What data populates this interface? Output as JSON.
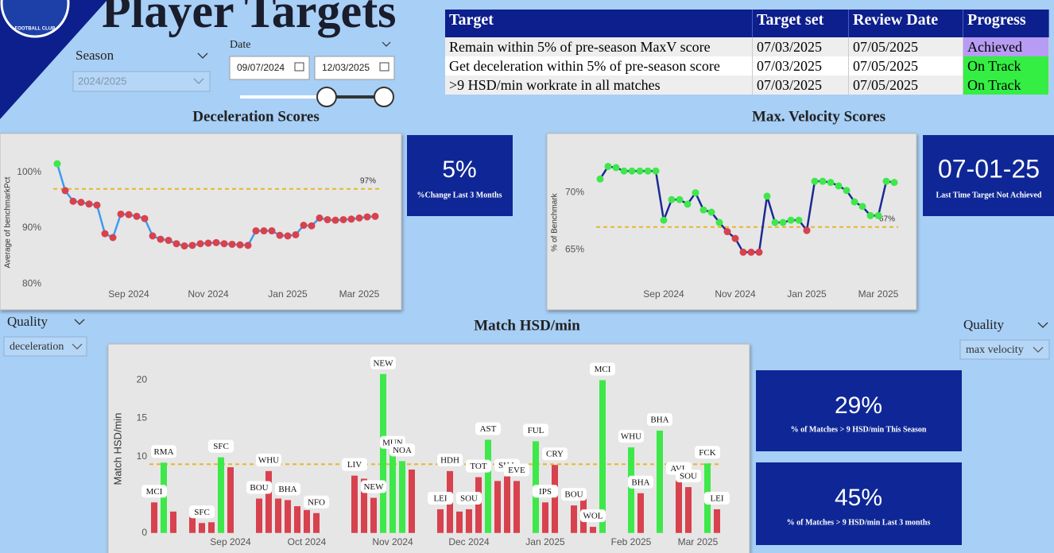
{
  "header": {
    "title": "Player Targets",
    "logo_text": "FOOTBALL CLUB"
  },
  "filters": {
    "season_label": "Season",
    "season_value": "2024/2025",
    "date_label": "Date",
    "date_start": "09/07/2024",
    "date_end": "12/03/2025",
    "quality_left_label": "Quality",
    "quality_left_value": "deceleration",
    "quality_right_label": "Quality",
    "quality_right_value": "max velocity"
  },
  "table": {
    "headers": [
      "Target",
      "Target set",
      "Review Date",
      "Progress"
    ],
    "rows": [
      [
        "Remain within 5% of pre-season MaxV score",
        "07/03/2025",
        "07/05/2025",
        "Achieved"
      ],
      [
        "Get deceleration within 5% of pre-season score",
        "07/03/2025",
        "07/05/2025",
        "On Track"
      ],
      [
        ">9 HSD/min workrate in all matches",
        "07/03/2025",
        "07/05/2025",
        "On Track"
      ]
    ],
    "progress_colors": [
      "#b79cf3",
      "#34ee44",
      "#34ee44"
    ]
  },
  "cards": [
    {
      "value": "5%",
      "caption": "%Change Last 3 Months"
    },
    {
      "value": "07-01-25",
      "caption": "Last Time Target Not Achieved"
    },
    {
      "value": "29%",
      "caption": "% of Matches > 9 HSD/min This Season"
    },
    {
      "value": "45%",
      "caption": "% of Matches > 9 HSD/min Last 3 months"
    }
  ],
  "chart_data": [
    {
      "type": "line",
      "title": "Deceleration Scores",
      "ylabel": "Average of benchmarkPct",
      "categories": [
        null,
        null,
        null,
        null,
        null,
        null,
        null,
        null,
        null,
        "Sep 2024",
        null,
        null,
        null,
        null,
        null,
        null,
        null,
        null,
        null,
        "Nov 2024",
        null,
        null,
        null,
        null,
        null,
        null,
        null,
        null,
        null,
        "Jan 2025",
        null,
        null,
        null,
        null,
        null,
        null,
        null,
        null,
        "Mar 2025",
        null,
        null
      ],
      "values": [
        101.5,
        96.7,
        94.8,
        94.6,
        94.3,
        94.1,
        89.0,
        88.3,
        92.5,
        92.4,
        92.1,
        91.7,
        88.6,
        88.0,
        87.8,
        87.2,
        86.8,
        86.9,
        87.2,
        87.3,
        87.4,
        87.2,
        87.1,
        87.0,
        86.9,
        89.5,
        89.5,
        89.5,
        88.7,
        88.6,
        88.8,
        90.5,
        90.4,
        91.8,
        91.5,
        91.4,
        91.5,
        91.6,
        91.8,
        92.0,
        92.1
      ],
      "ylim": [
        77.5,
        104.5
      ],
      "yticks": [
        {
          "value": 80,
          "label": "80%"
        },
        {
          "value": 90,
          "label": "90%"
        },
        {
          "value": 100,
          "label": "100%"
        }
      ],
      "target": 97,
      "target_label": "97%",
      "target_color": "#e8b62c",
      "line_color": "#3d9cf0",
      "above_color": "#3ee84a",
      "below_color": "#d7424e"
    },
    {
      "type": "line",
      "title": "Max. Velocity Scores",
      "ylabel": "% of Benchmark",
      "categories": [
        null,
        null,
        null,
        null,
        null,
        null,
        null,
        null,
        "Sep 2024",
        null,
        null,
        null,
        null,
        null,
        null,
        null,
        null,
        "Nov 2024",
        null,
        null,
        null,
        null,
        null,
        null,
        null,
        null,
        "Jan 2025",
        null,
        null,
        null,
        null,
        null,
        null,
        null,
        null,
        "Mar 2025",
        null,
        null
      ],
      "values": [
        71.2,
        72.3,
        72.2,
        71.9,
        71.9,
        71.9,
        71.9,
        71.9,
        67.6,
        69.4,
        69.4,
        69.0,
        70.0,
        68.5,
        68.3,
        67.4,
        66.6,
        66.0,
        64.8,
        64.8,
        64.8,
        69.7,
        67.4,
        67.4,
        67.6,
        67.6,
        66.7,
        71.0,
        71.0,
        70.9,
        70.6,
        70.2,
        69.2,
        68.8,
        68.0,
        68.0,
        71.0,
        70.9
      ],
      "ylim": [
        60.8,
        74
      ],
      "yticks": [
        {
          "value": 65,
          "label": "65%"
        },
        {
          "value": 70,
          "label": "70%"
        }
      ],
      "target": 67,
      "target_label": "67%",
      "target_color": "#e8b62c",
      "line_color": "#1b2a96",
      "above_color": "#3ee84a",
      "below_color": "#d7424e"
    },
    {
      "type": "bar",
      "title": "Match HSD/min",
      "ylabel": "Match HSD/min",
      "categories": [
        null,
        null,
        null,
        null,
        null,
        null,
        null,
        null,
        "Sep 2024",
        null,
        null,
        null,
        null,
        null,
        null,
        null,
        "Oct 2024",
        null,
        null,
        null,
        null,
        null,
        null,
        null,
        null,
        "Nov 2024",
        null,
        null,
        null,
        null,
        null,
        null,
        null,
        "Dec 2024",
        null,
        null,
        null,
        null,
        null,
        null,
        null,
        "Jan 2025",
        null,
        null,
        null,
        null,
        null,
        null,
        null,
        null,
        "Feb 2025",
        null,
        null,
        null,
        null,
        null,
        null,
        "Mar 2025",
        null,
        null
      ],
      "values": [
        4.0,
        9.2,
        2.8,
        null,
        2.1,
        1.3,
        1.4,
        9.9,
        8.6,
        null,
        null,
        4.5,
        8.1,
        4.5,
        4.3,
        3.5,
        3.0,
        2.6,
        null,
        null,
        null,
        7.5,
        7.1,
        4.6,
        20.8,
        10.4,
        9.4,
        8.3,
        null,
        null,
        3.1,
        8.1,
        2.8,
        3.1,
        7.3,
        12.2,
        6.8,
        7.4,
        6.8,
        null,
        12.0,
        4.0,
        8.9,
        null,
        3.6,
        4.6,
        0.8,
        20.0,
        null,
        null,
        11.2,
        5.2,
        null,
        13.4,
        null,
        7.0,
        6.0,
        null,
        9.1,
        3.1
      ],
      "opponents": [
        "MCI",
        "RMA",
        null,
        null,
        null,
        "SFC",
        null,
        "SFC",
        null,
        null,
        null,
        "BOU",
        "WHU",
        null,
        "BHA",
        null,
        null,
        "NFO",
        null,
        null,
        null,
        "LIV",
        null,
        "NEW",
        "NEW",
        "MUN",
        "NOA",
        null,
        null,
        null,
        "LEI",
        "HDH",
        null,
        "SOU",
        "TOT",
        "AST",
        null,
        "SHA",
        "EVE",
        null,
        "FUL",
        "IPS",
        "CRY",
        null,
        "BOU",
        null,
        "WOL",
        "MCI",
        null,
        null,
        "WHU",
        "BHA",
        null,
        "BHA",
        null,
        "AVL",
        "SOU",
        null,
        "FCK",
        "LEI"
      ],
      "ylim": [
        -2,
        24
      ],
      "yticks": [
        0,
        5,
        10,
        15,
        20
      ],
      "target": 9,
      "target_color": "#e8b62c",
      "above_color": "#3ee84a",
      "below_color": "#d7424e"
    }
  ]
}
